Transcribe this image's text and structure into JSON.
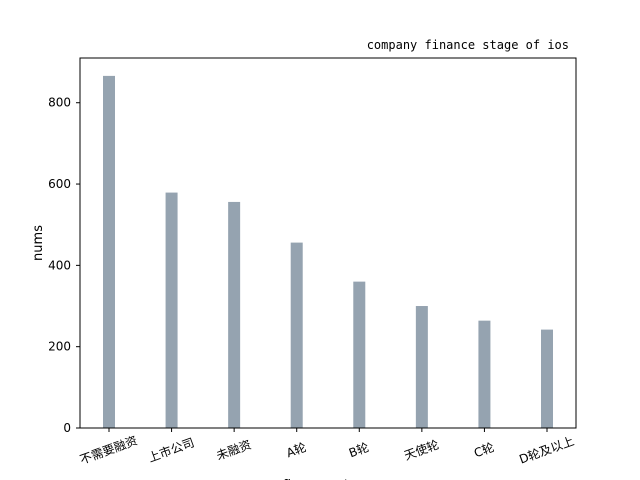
{
  "chart_data": {
    "type": "bar",
    "title": "company finance stage of ios",
    "xlabel": "finance_stage",
    "ylabel": "nums",
    "categories": [
      "不需要融资",
      "上市公司",
      "未融资",
      "A轮",
      "B轮",
      "天使轮",
      "C轮",
      "D轮及以上"
    ],
    "values": [
      866,
      579,
      556,
      456,
      360,
      300,
      264,
      242
    ],
    "ylim": [
      0,
      910
    ],
    "yticks": [
      0,
      200,
      400,
      600,
      800
    ],
    "bar_color": "#95a3b0",
    "grid": false,
    "legend": "none"
  }
}
